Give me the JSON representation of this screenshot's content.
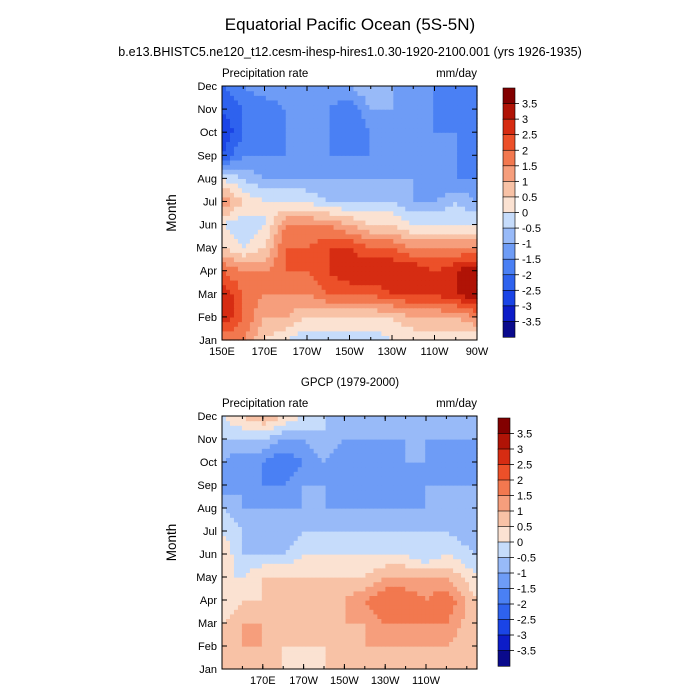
{
  "figure": {
    "title": "Equatorial Pacific Ocean (5S-5N)",
    "subtitle": "b.e13.BHISTC5.ne120_t12.cesm-ihesp-hires1.0.30-1920-2100.001 (yrs 1926-1935)"
  },
  "chart_data": [
    {
      "type": "heatmap",
      "title": "",
      "left_label": "Precipitation rate",
      "right_label": "mm/day",
      "ylabel": "Month",
      "xlabel": "",
      "x_ticks": [
        "150E",
        "170E",
        "170W",
        "150W",
        "130W",
        "110W",
        "90W"
      ],
      "x_tick_values": [
        150,
        170,
        190,
        210,
        230,
        250,
        270
      ],
      "xlim": [
        150,
        270
      ],
      "y_ticks": [
        "Jan",
        "Feb",
        "Mar",
        "Apr",
        "May",
        "Jun",
        "Jul",
        "Aug",
        "Sep",
        "Oct",
        "Nov",
        "Dec"
      ],
      "x": [
        150,
        160,
        170,
        180,
        190,
        200,
        210,
        220,
        230,
        240,
        250,
        260,
        270
      ],
      "z": [
        [
          1.5,
          1.5,
          0.5,
          0,
          -0.5,
          -0.5,
          -0.5,
          -0.5,
          0,
          0,
          0,
          0,
          0
        ],
        [
          3,
          2,
          1,
          1,
          0.5,
          0.5,
          0.5,
          0.5,
          0.5,
          1,
          1,
          1,
          1.5
        ],
        [
          3,
          2,
          1.5,
          1.5,
          1.5,
          2,
          2,
          2,
          2.5,
          2.5,
          2.5,
          3,
          3.5
        ],
        [
          2,
          1.5,
          1.5,
          2,
          2,
          2.5,
          3,
          3,
          3,
          3,
          2.5,
          3,
          3.5
        ],
        [
          0.5,
          0,
          0.5,
          2,
          2,
          2.5,
          2.5,
          2,
          2,
          1.5,
          1.5,
          1.5,
          1.5
        ],
        [
          0,
          -0.5,
          0,
          1.5,
          1.5,
          1.5,
          1,
          0.5,
          0.5,
          0,
          0,
          0,
          0
        ],
        [
          1.5,
          0.5,
          0,
          0,
          0,
          -0.5,
          -0.5,
          -0.5,
          -0.5,
          -1,
          -1,
          -0.5,
          -1
        ],
        [
          0,
          -0.5,
          -1,
          -1,
          -1,
          -1,
          -1,
          -1,
          -1,
          -1,
          -1.5,
          -1.5,
          -1.5
        ],
        [
          -2.5,
          -1.5,
          -1.5,
          -1.5,
          -1.5,
          -1.5,
          -1.5,
          -1.5,
          -1,
          -1.5,
          -1.5,
          -1.5,
          -2
        ],
        [
          -3,
          -2,
          -2,
          -1.5,
          -1.5,
          -1.5,
          -2,
          -1.5,
          -1,
          -1.5,
          -1.5,
          -1.5,
          -2
        ],
        [
          -2.5,
          -2,
          -2,
          -1.5,
          -1,
          -1.5,
          -2,
          -1,
          -1,
          -1.5,
          -1.5,
          -2,
          -2
        ],
        [
          -2,
          -1.5,
          -1,
          -1,
          -1,
          -1,
          -1,
          -0.5,
          -1,
          -1,
          -1.5,
          -1.5,
          -2
        ]
      ],
      "colorbar_labels": [
        "3.5",
        "3",
        "2.5",
        "2",
        "1.5",
        "1",
        "0.5",
        "0",
        "-0.5",
        "-1",
        "-1.5",
        "-2",
        "-2.5",
        "-3",
        "-3.5"
      ]
    },
    {
      "type": "heatmap",
      "title": "GPCP (1979-2000)",
      "left_label": "Precipitation rate",
      "right_label": "mm/day",
      "ylabel": "Month",
      "xlabel": "",
      "x_ticks": [
        "170E",
        "170W",
        "150W",
        "130W",
        "110W"
      ],
      "x_tick_values": [
        170,
        190,
        210,
        230,
        250
      ],
      "xlim": [
        150,
        275
      ],
      "y_ticks": [
        "Jan",
        "Feb",
        "Mar",
        "Apr",
        "May",
        "Jun",
        "Jul",
        "Aug",
        "Sep",
        "Oct",
        "Nov",
        "Dec"
      ],
      "x": [
        150,
        160,
        170,
        180,
        190,
        200,
        210,
        220,
        230,
        240,
        250,
        260,
        275
      ],
      "z": [
        [
          0.5,
          0.5,
          0.5,
          0.5,
          0,
          0.5,
          0.5,
          0.5,
          0.5,
          0.5,
          0.5,
          0.5,
          0.5
        ],
        [
          0.5,
          1,
          1,
          0.5,
          0.5,
          0.5,
          0.5,
          1,
          1,
          1,
          1,
          1,
          0.5
        ],
        [
          0.5,
          1,
          1,
          0.5,
          0.5,
          0.5,
          1,
          1,
          1.5,
          1.5,
          1.5,
          1.5,
          0.5
        ],
        [
          0,
          0.5,
          0.5,
          0.5,
          0.5,
          1,
          1,
          1.5,
          2,
          2,
          1.5,
          2,
          0.5
        ],
        [
          0,
          0,
          0.5,
          0.5,
          0.5,
          0.5,
          0.5,
          0.5,
          1,
          1,
          1,
          1,
          0
        ],
        [
          0.5,
          -0.5,
          -0.5,
          -0.5,
          0,
          0,
          0,
          0,
          0,
          0,
          -0.5,
          0,
          -0.5
        ],
        [
          0,
          -0.5,
          -1,
          -1,
          -0.5,
          -0.5,
          -0.5,
          -0.5,
          -0.5,
          -0.5,
          -0.5,
          -0.5,
          -1
        ],
        [
          -0.5,
          -1,
          -1,
          -1,
          -1,
          -1,
          -1,
          -1,
          -1,
          -1,
          -1,
          -1,
          -1
        ],
        [
          -1.5,
          -1,
          -1.5,
          -1.5,
          -1,
          -1,
          -1.5,
          -1.5,
          -1,
          -1.5,
          -1,
          -1,
          -1
        ],
        [
          -1,
          -1.5,
          -1.5,
          -2,
          -1.5,
          -1,
          -1.5,
          -1.5,
          -1.5,
          -1,
          -1,
          -1.5,
          -1
        ],
        [
          -0.5,
          -0.5,
          -0.5,
          -1,
          -1,
          -0.5,
          -1,
          -1,
          -1,
          -1,
          -1,
          -1,
          -1
        ],
        [
          0,
          0.5,
          1,
          0.5,
          0,
          -0.5,
          -0.5,
          -0.5,
          -0.5,
          -0.5,
          -0.5,
          -0.5,
          -0.5
        ]
      ],
      "colorbar_labels": [
        "3.5",
        "3",
        "2.5",
        "2",
        "1.5",
        "1",
        "0.5",
        "0",
        "-0.5",
        "-1",
        "-1.5",
        "-2",
        "-2.5",
        "-3",
        "-3.5"
      ]
    }
  ]
}
